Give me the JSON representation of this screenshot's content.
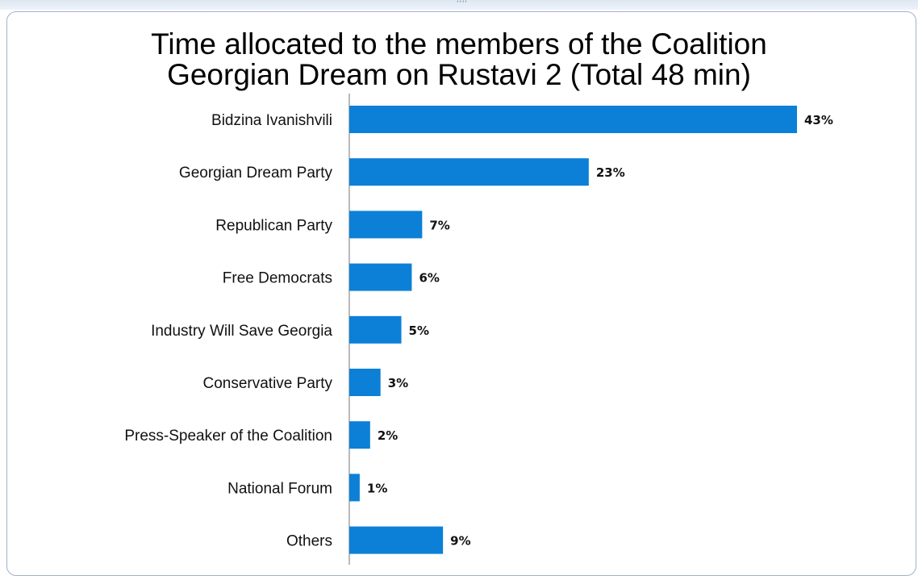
{
  "chart_data": {
    "type": "bar",
    "orientation": "horizontal",
    "title": [
      "Time allocated to the members of the Coalition",
      "Georgian Dream on Rustavi 2 (Total 48 min)"
    ],
    "categories": [
      "Bidzina Ivanishvili",
      "Georgian Dream Party",
      "Republican Party",
      "Free Democrats",
      "Industry Will Save Georgia",
      "Conservative Party",
      "Press-Speaker of the Coalition",
      "National Forum",
      "Others"
    ],
    "values": [
      43,
      23,
      7,
      6,
      5,
      3,
      2,
      1,
      9
    ],
    "value_labels": [
      "43%",
      "23%",
      "7%",
      "6%",
      "5%",
      "3%",
      "2%",
      "1%",
      "9%"
    ],
    "xlim": [
      0,
      50
    ],
    "grid": false,
    "bar_color": "#0c7fd6"
  },
  "handle_glyph": "''''"
}
